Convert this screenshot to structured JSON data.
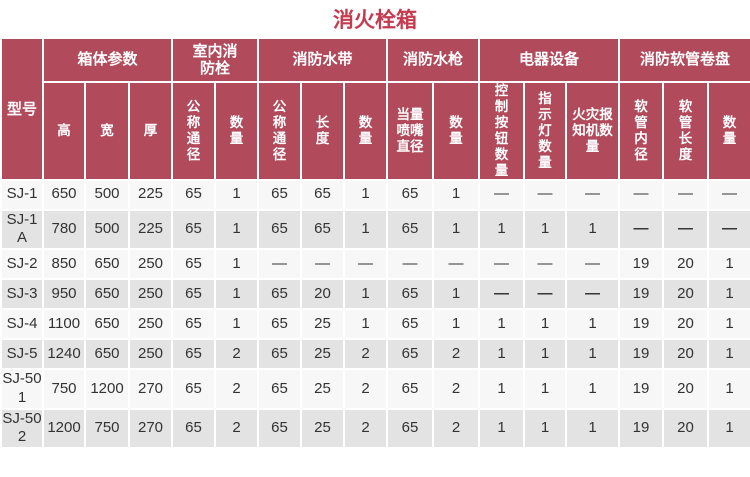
{
  "title": "消火栓箱",
  "colors": {
    "header_bg": "#b14a5b",
    "title": "#c43a4f",
    "row_light": "#f7f7f7",
    "row_dark": "#e3e3e3",
    "text": "#333333",
    "header_text": "#ffffff"
  },
  "table": {
    "corner_header": "型号",
    "groups": [
      {
        "label": "箱体参数",
        "span": 3,
        "cpl": 0
      },
      {
        "label": "室内消防栓",
        "span": 2,
        "cpl": 3
      },
      {
        "label": "消防水带",
        "span": 3,
        "cpl": 0
      },
      {
        "label": "消防水枪",
        "span": 2,
        "cpl": 0
      },
      {
        "label": "电器设备",
        "span": 3,
        "cpl": 0
      },
      {
        "label": "消防软管卷盘",
        "span": 3,
        "cpl": 0
      }
    ],
    "columns": [
      {
        "label": "高",
        "cpl": 0,
        "width": 40
      },
      {
        "label": "宽",
        "cpl": 0,
        "width": 42
      },
      {
        "label": "厚",
        "cpl": 0,
        "width": 41
      },
      {
        "label": "公称通径",
        "cpl": 1,
        "width": 41
      },
      {
        "label": "数量",
        "cpl": 1,
        "width": 41
      },
      {
        "label": "公称通径",
        "cpl": 1,
        "width": 41
      },
      {
        "label": "长度",
        "cpl": 1,
        "width": 41
      },
      {
        "label": "数量",
        "cpl": 1,
        "width": 41
      },
      {
        "label": "当量喷嘴直径",
        "cpl": 2,
        "width": 44
      },
      {
        "label": "数量",
        "cpl": 1,
        "width": 44
      },
      {
        "label": "控制按钮数量",
        "cpl": 1,
        "width": 43
      },
      {
        "label": "指示灯数量",
        "cpl": 1,
        "width": 40
      },
      {
        "label": "火灾报知机数量",
        "cpl": 3,
        "width": 51
      },
      {
        "label": "软管内径",
        "cpl": 1,
        "width": 42
      },
      {
        "label": "软管长度",
        "cpl": 1,
        "width": 43
      },
      {
        "label": "数量",
        "cpl": 1,
        "width": 41
      }
    ],
    "model_col_width": 40,
    "rows": [
      {
        "model": "SJ-1",
        "cells": [
          "650",
          "500",
          "225",
          "65",
          "1",
          "65",
          "65",
          "1",
          "65",
          "1",
          "—",
          "—",
          "—",
          "—",
          "—",
          "—"
        ]
      },
      {
        "model": "SJ-1A",
        "cells": [
          "780",
          "500",
          "225",
          "65",
          "1",
          "65",
          "65",
          "1",
          "65",
          "1",
          "1",
          "1",
          "1",
          {
            "text": "—",
            "bold": true
          },
          {
            "text": "—",
            "bold": true
          },
          {
            "text": "—",
            "bold": true
          }
        ]
      },
      {
        "model": "SJ-2",
        "cells": [
          "850",
          "650",
          "250",
          "65",
          "1",
          "—",
          "—",
          "—",
          "—",
          "—",
          "—",
          "—",
          "—",
          "19",
          "20",
          "1"
        ]
      },
      {
        "model": "SJ-3",
        "cells": [
          "950",
          "650",
          "250",
          "65",
          "1",
          "65",
          "20",
          "1",
          "65",
          "1",
          {
            "text": "—",
            "bold": true
          },
          {
            "text": "—",
            "bold": true
          },
          {
            "text": "—",
            "bold": true
          },
          "19",
          "20",
          "1"
        ]
      },
      {
        "model": "SJ-4",
        "cells": [
          "1100",
          "650",
          "250",
          "65",
          "1",
          "65",
          "25",
          "1",
          "65",
          "1",
          "1",
          "1",
          "1",
          "19",
          "20",
          "1"
        ]
      },
      {
        "model": "SJ-5",
        "cells": [
          "1240",
          "650",
          "250",
          "65",
          "2",
          "65",
          "25",
          "2",
          "65",
          "2",
          "1",
          "1",
          "1",
          "19",
          "20",
          "1"
        ]
      },
      {
        "model": "SJ-501",
        "cells": [
          "750",
          "1200",
          "270",
          "65",
          "2",
          "65",
          "25",
          "2",
          "65",
          "2",
          "1",
          "1",
          "1",
          "19",
          "20",
          "1"
        ]
      },
      {
        "model": "SJ-502",
        "cells": [
          "1200",
          "750",
          "270",
          "65",
          "2",
          "65",
          "25",
          "2",
          "65",
          "2",
          "1",
          "1",
          "1",
          "19",
          "20",
          "1"
        ]
      }
    ]
  }
}
